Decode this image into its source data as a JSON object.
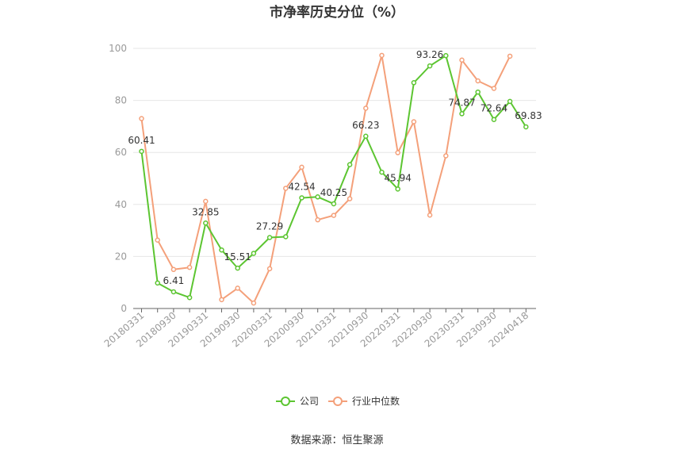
{
  "chart_data": {
    "type": "line",
    "title": "市净率历史分位（%）",
    "source": "数据来源：恒生聚源",
    "ylim": [
      0,
      100
    ],
    "y_ticks": [
      0,
      20,
      40,
      60,
      80,
      100
    ],
    "x_tick_labels": [
      "20180331",
      "20180930",
      "20190331",
      "20190930",
      "20200331",
      "20200930",
      "20210331",
      "20210930",
      "20220331",
      "20220930",
      "20230331",
      "20230930",
      "20240418"
    ],
    "x": [
      "20180331",
      "20180630",
      "20180930",
      "20181231",
      "20190331",
      "20190630",
      "20190930",
      "20191231",
      "20200331",
      "20200630",
      "20200930",
      "20201231",
      "20210331",
      "20210630",
      "20210930",
      "20211231",
      "20220331",
      "20220630",
      "20220930",
      "20221231",
      "20230331",
      "20230630",
      "20230930",
      "20231231",
      "20240418"
    ],
    "grid": true,
    "legend_position": "bottom",
    "series": [
      {
        "name": "公司",
        "color": "#5cc531",
        "values": [
          60.41,
          9.8,
          6.41,
          4.2,
          32.85,
          22.5,
          15.51,
          21.2,
          27.29,
          27.6,
          42.54,
          42.9,
          40.25,
          55.3,
          66.23,
          52.4,
          45.94,
          86.8,
          93.26,
          97.2,
          74.87,
          83.2,
          72.64,
          79.6,
          69.83
        ]
      },
      {
        "name": "行业中位数",
        "color": "#f4a07a",
        "values": [
          73.0,
          26.3,
          15.0,
          15.8,
          41.2,
          3.4,
          7.8,
          2.1,
          15.3,
          46.2,
          54.3,
          34.1,
          35.8,
          42.2,
          77.0,
          97.3,
          59.9,
          71.8,
          35.9,
          58.7,
          95.5,
          87.5,
          84.6,
          97.0,
          null
        ]
      }
    ],
    "data_labels": [
      {
        "series": 0,
        "index": 0,
        "text": "60.41"
      },
      {
        "series": 0,
        "index": 2,
        "text": "6.41"
      },
      {
        "series": 0,
        "index": 4,
        "text": "32.85"
      },
      {
        "series": 0,
        "index": 6,
        "text": "15.51"
      },
      {
        "series": 0,
        "index": 8,
        "text": "27.29"
      },
      {
        "series": 0,
        "index": 10,
        "text": "42.54"
      },
      {
        "series": 0,
        "index": 12,
        "text": "40.25"
      },
      {
        "series": 0,
        "index": 14,
        "text": "66.23"
      },
      {
        "series": 0,
        "index": 16,
        "text": "45.94"
      },
      {
        "series": 0,
        "index": 18,
        "text": "93.26"
      },
      {
        "series": 0,
        "index": 20,
        "text": "74.87"
      },
      {
        "series": 0,
        "index": 22,
        "text": "72.64"
      },
      {
        "series": 0,
        "index": 24,
        "text": "69.83"
      }
    ]
  }
}
